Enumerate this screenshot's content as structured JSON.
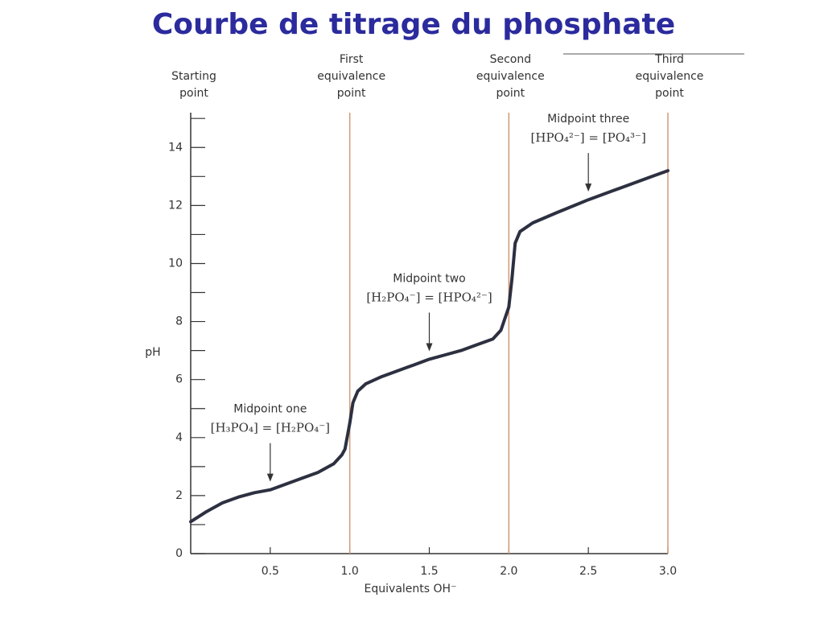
{
  "chart_data": {
    "type": "line",
    "title": "Courbe de titrage du phosphate",
    "x_label": "Equivalents OH⁻",
    "y_label": "pH",
    "x": [
      0,
      0.1,
      0.2,
      0.3,
      0.4,
      0.5,
      0.6,
      0.7,
      0.8,
      0.9,
      0.95,
      0.97,
      1.0,
      1.02,
      1.05,
      1.1,
      1.2,
      1.3,
      1.4,
      1.5,
      1.6,
      1.7,
      1.8,
      1.9,
      1.95,
      2.0,
      2.02,
      2.04,
      2.07,
      2.15,
      2.3,
      2.5,
      2.7,
      2.9,
      3.0
    ],
    "series": [
      {
        "color": "#2d3040",
        "values": [
          1.1,
          1.45,
          1.75,
          1.95,
          2.1,
          2.2,
          2.4,
          2.6,
          2.8,
          3.1,
          3.4,
          3.6,
          4.5,
          5.2,
          5.6,
          5.85,
          6.1,
          6.3,
          6.5,
          6.7,
          6.85,
          7.0,
          7.2,
          7.4,
          7.7,
          8.5,
          9.5,
          10.7,
          11.1,
          11.4,
          11.75,
          12.2,
          12.6,
          13.0,
          13.2
        ]
      }
    ],
    "xlim": [
      0,
      3.0
    ],
    "ylim": [
      0,
      15.2
    ],
    "xticks": [
      0.5,
      {
        "value": 1,
        "label": "1.0"
      },
      1.5,
      {
        "value": 2,
        "label": "2.0"
      },
      2.5,
      {
        "value": 3,
        "label": "3.0"
      }
    ],
    "yticks": [
      0,
      2,
      4,
      6,
      8,
      10,
      12,
      14
    ],
    "yticks_minor": [
      1,
      3,
      5,
      7,
      9,
      11,
      13,
      15
    ],
    "reference_lines": [
      {
        "x": 0,
        "label": [
          "Starting",
          "point"
        ]
      },
      {
        "x": 1,
        "label": [
          "First",
          "equivalence",
          "point"
        ],
        "color": "#d09a78"
      },
      {
        "x": 2,
        "label": [
          "Second",
          "equivalence",
          "point"
        ],
        "color": "#d09a78"
      },
      {
        "x": 3,
        "label": [
          "Third",
          "equivalence",
          "point"
        ],
        "color": "#d09a78"
      }
    ],
    "annotations": [
      {
        "x": 0.5,
        "label": "Midpoint one",
        "formula": "[H₃PO₄] = [H₂PO₄⁻]"
      },
      {
        "x": 1.5,
        "label": "Midpoint two",
        "formula": "[H₂PO₄⁻] = [HPO₄²⁻]"
      },
      {
        "x": 2.5,
        "label": "Midpoint three",
        "formula": "[HPO₄²⁻] = [PO₄³⁻]"
      }
    ]
  }
}
